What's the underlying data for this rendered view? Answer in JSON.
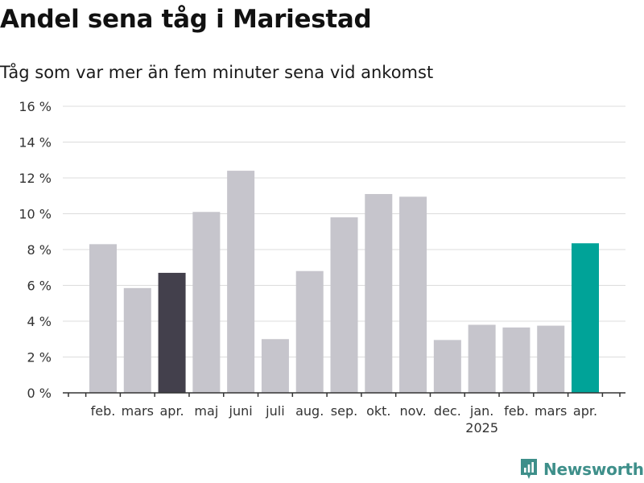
{
  "header": {
    "title": "Andel sena tåg i Mariestad",
    "subtitle": "Tåg som var mer än fem minuter sena vid ankomst"
  },
  "chart_data": {
    "type": "bar",
    "title": "Andel sena tåg i Mariestad",
    "subtitle": "Tåg som var mer än fem minuter sena vid ankomst",
    "xlabel": "",
    "ylabel": "",
    "ylim": [
      0,
      16
    ],
    "yticks": [
      0,
      2,
      4,
      6,
      8,
      10,
      12,
      14,
      16
    ],
    "ytick_labels": [
      "0 %",
      "2 %",
      "4 %",
      "6 %",
      "8 %",
      "10 %",
      "12 %",
      "14 %",
      "16 %"
    ],
    "grid": true,
    "legend": "none",
    "categories": [
      "feb.",
      "mars",
      "apr.",
      "maj",
      "juni",
      "juli",
      "aug.",
      "sep.",
      "okt.",
      "nov.",
      "dec.",
      "jan.",
      "feb.",
      "mars",
      "apr."
    ],
    "values": [
      8.3,
      5.85,
      6.7,
      10.1,
      12.4,
      3.0,
      6.8,
      9.8,
      11.1,
      10.95,
      2.95,
      3.8,
      3.65,
      3.75,
      8.35
    ],
    "year_labels": [
      {
        "index": 11,
        "label": "2025"
      }
    ],
    "bar_colors": [
      "#c6c5cc",
      "#c6c5cc",
      "#43404c",
      "#c6c5cc",
      "#c6c5cc",
      "#c6c5cc",
      "#c6c5cc",
      "#c6c5cc",
      "#c6c5cc",
      "#c6c5cc",
      "#c6c5cc",
      "#c6c5cc",
      "#c6c5cc",
      "#c6c5cc",
      "#00a398"
    ],
    "colors": {
      "default_bar": "#c6c5cc",
      "highlight_previous": "#43404c",
      "highlight_current": "#00a398",
      "gridline": "#dcdcdc",
      "axis": "#333333"
    }
  },
  "branding": {
    "logo_text": "Newsworthy",
    "logo_icon": "newsworthy-chart-icon",
    "logo_color": "#3e8f8a"
  }
}
